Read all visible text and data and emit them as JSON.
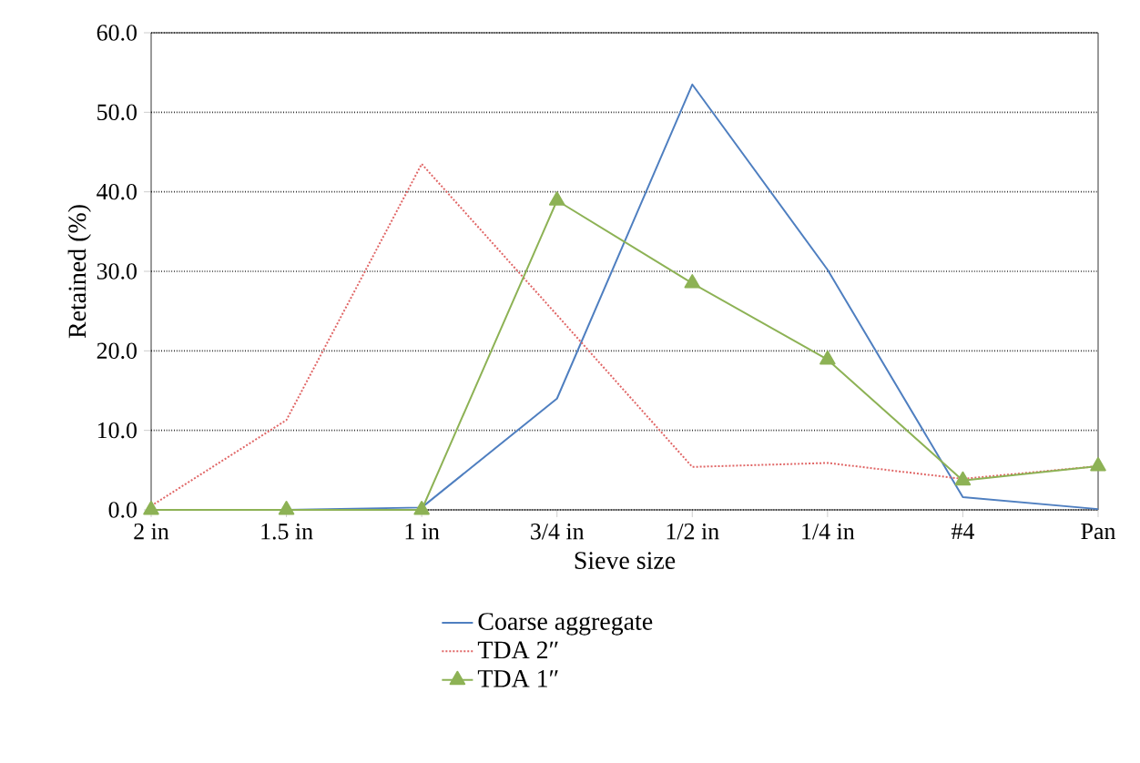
{
  "chart_data": {
    "type": "line",
    "xlabel": "Sieve size",
    "ylabel": "Retained (%)",
    "categories": [
      "2 in",
      "1.5 in",
      "1 in",
      "3/4 in",
      "1/2 in",
      "1/4 in",
      "#4",
      "Pan"
    ],
    "ylim": [
      0,
      60
    ],
    "yticks": [
      {
        "value": 0,
        "label": "0.0"
      },
      {
        "value": 10,
        "label": "10.0"
      },
      {
        "value": 20,
        "label": "20.0"
      },
      {
        "value": 30,
        "label": "30.0"
      },
      {
        "value": 40,
        "label": "40.0"
      },
      {
        "value": 50,
        "label": "50.0"
      },
      {
        "value": 60,
        "label": "60.0"
      }
    ],
    "grid": "y",
    "legend": "bottom",
    "series": [
      {
        "name": "Coarse aggregate",
        "color": "#4f7fc0",
        "line_style": "solid",
        "marker": "none",
        "values": [
          0,
          0,
          0.3,
          14.0,
          53.5,
          30.2,
          1.6,
          0.1
        ]
      },
      {
        "name": "TDA 2″",
        "color": "#e06666",
        "line_style": "dotted",
        "marker": "none",
        "values": [
          0.5,
          11.3,
          43.5,
          24.5,
          5.4,
          5.9,
          3.9,
          5.5
        ]
      },
      {
        "name": "TDA 1″",
        "color": "#8db255",
        "line_style": "solid",
        "marker": "triangle",
        "values": [
          0,
          0,
          0,
          38.9,
          28.5,
          18.9,
          3.7,
          5.5
        ]
      }
    ]
  }
}
